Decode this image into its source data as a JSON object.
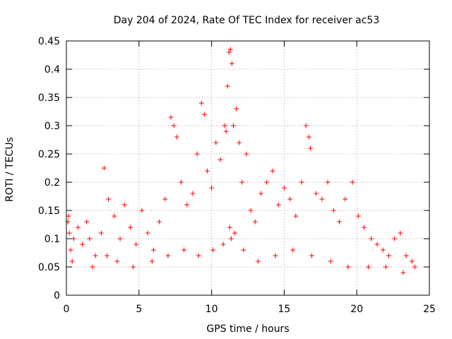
{
  "chart_data": {
    "type": "scatter",
    "title": "Day 204 of 2024, Rate Of TEC Index for receiver ac53",
    "xlabel": "GPS time / hours",
    "ylabel": "ROTI / TECUs",
    "xlim": [
      0,
      25
    ],
    "ylim": [
      0,
      0.45
    ],
    "x_ticks": [
      "0",
      "5",
      "10",
      "15",
      "20",
      "25"
    ],
    "y_ticks": [
      "0",
      "0.05",
      "0.1",
      "0.15",
      "0.2",
      "0.25",
      "0.3",
      "0.35",
      "0.4",
      "0.45"
    ],
    "grid": true,
    "marker": "+",
    "series_color": "#ff0000",
    "points_x": [
      0.1,
      0.15,
      0.2,
      0.3,
      0.5,
      0.8,
      1.1,
      1.4,
      1.6,
      2.0,
      2.4,
      2.6,
      2.9,
      3.3,
      3.7,
      4.0,
      4.4,
      4.8,
      5.2,
      5.6,
      6.0,
      6.4,
      6.8,
      7.2,
      7.4,
      7.6,
      7.9,
      8.3,
      8.7,
      9.0,
      9.3,
      9.5,
      9.7,
      10.0,
      10.3,
      10.6,
      10.9,
      11.0,
      11.1,
      11.2,
      11.3,
      11.4,
      11.5,
      11.7,
      11.9,
      12.1,
      12.4,
      12.7,
      13.0,
      13.4,
      13.8,
      14.2,
      14.6,
      15.0,
      15.4,
      15.8,
      16.2,
      16.5,
      16.7,
      16.8,
      17.2,
      17.6,
      18.0,
      18.4,
      18.8,
      19.2,
      19.7,
      20.1,
      20.5,
      21.0,
      21.4,
      21.8,
      22.2,
      22.6,
      23.0,
      23.4,
      23.8,
      24.0,
      0.4,
      1.8,
      2.8,
      3.5,
      4.6,
      5.9,
      7.0,
      8.1,
      9.1,
      10.1,
      10.8,
      11.25,
      11.35,
      11.6,
      12.2,
      13.2,
      14.4,
      15.6,
      16.9,
      18.2,
      19.4,
      20.8,
      22.0,
      23.2
    ],
    "points_y": [
      0.13,
      0.14,
      0.11,
      0.08,
      0.1,
      0.12,
      0.09,
      0.13,
      0.1,
      0.07,
      0.11,
      0.225,
      0.17,
      0.14,
      0.1,
      0.16,
      0.12,
      0.09,
      0.15,
      0.11,
      0.08,
      0.13,
      0.17,
      0.315,
      0.3,
      0.28,
      0.2,
      0.16,
      0.18,
      0.25,
      0.34,
      0.32,
      0.22,
      0.19,
      0.27,
      0.24,
      0.3,
      0.29,
      0.37,
      0.43,
      0.435,
      0.41,
      0.3,
      0.33,
      0.27,
      0.2,
      0.25,
      0.15,
      0.13,
      0.18,
      0.2,
      0.22,
      0.16,
      0.19,
      0.17,
      0.14,
      0.2,
      0.3,
      0.28,
      0.26,
      0.18,
      0.17,
      0.2,
      0.15,
      0.13,
      0.17,
      0.2,
      0.14,
      0.12,
      0.1,
      0.09,
      0.08,
      0.07,
      0.1,
      0.11,
      0.07,
      0.06,
      0.05,
      0.06,
      0.05,
      0.07,
      0.06,
      0.05,
      0.06,
      0.07,
      0.08,
      0.07,
      0.08,
      0.09,
      0.12,
      0.1,
      0.11,
      0.08,
      0.06,
      0.07,
      0.08,
      0.07,
      0.06,
      0.05,
      0.05,
      0.05,
      0.04
    ]
  }
}
